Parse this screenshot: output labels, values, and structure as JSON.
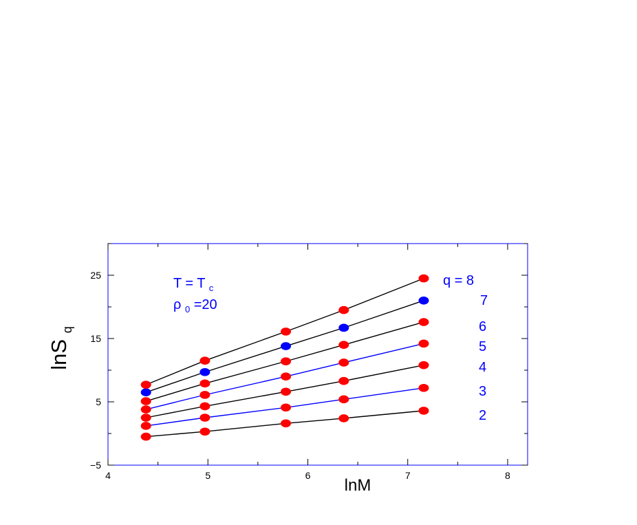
{
  "chart_data": {
    "type": "scatter",
    "xlabel": "lnM",
    "ylabel": {
      "main": "lnS",
      "subscript": "q"
    },
    "xlim": [
      4,
      8.2
    ],
    "ylim": [
      -5,
      30
    ],
    "x_ticks": [
      4,
      5,
      6,
      7,
      8
    ],
    "x_tick_labels": [
      "4",
      "5",
      "6",
      "7",
      "8"
    ],
    "y_ticks": [
      -5,
      5,
      15,
      25
    ],
    "y_tick_labels": [
      "−5",
      "5",
      "15",
      "25"
    ],
    "grid": false,
    "legend": "none",
    "annotations": {
      "temperature": {
        "main": "T = T",
        "subscript": "c"
      },
      "density": {
        "symbol": "ρ",
        "subscript": "0",
        "text": " =20"
      }
    },
    "x": [
      4.38,
      4.97,
      5.78,
      6.36,
      7.16
    ],
    "series": [
      {
        "name": "2",
        "label": "2",
        "values": [
          -0.5,
          0.3,
          1.6,
          2.4,
          3.6
        ],
        "line_color": "#000000",
        "marker_colors": [
          "#ff0000",
          "#ff0000",
          "#ff0000",
          "#ff0000",
          "#ff0000"
        ]
      },
      {
        "name": "3",
        "label": "3",
        "values": [
          1.2,
          2.5,
          4.1,
          5.4,
          7.2
        ],
        "line_color": "#0000ff",
        "marker_colors": [
          "#ff0000",
          "#ff0000",
          "#ff0000",
          "#ff0000",
          "#ff0000"
        ]
      },
      {
        "name": "4",
        "label": "4",
        "values": [
          2.5,
          4.3,
          6.6,
          8.3,
          10.8
        ],
        "line_color": "#000000",
        "marker_colors": [
          "#ff0000",
          "#ff0000",
          "#ff0000",
          "#ff0000",
          "#ff0000"
        ]
      },
      {
        "name": "5",
        "label": "5",
        "values": [
          3.8,
          6.1,
          9.0,
          11.2,
          14.2
        ],
        "line_color": "#0000ff",
        "marker_colors": [
          "#ff0000",
          "#ff0000",
          "#ff0000",
          "#ff0000",
          "#ff0000"
        ]
      },
      {
        "name": "6",
        "label": "6",
        "values": [
          5.1,
          7.9,
          11.4,
          14.0,
          17.6
        ],
        "line_color": "#000000",
        "marker_colors": [
          "#ff0000",
          "#ff0000",
          "#ff0000",
          "#ff0000",
          "#ff0000"
        ]
      },
      {
        "name": "7",
        "label": "7",
        "values": [
          6.5,
          9.7,
          13.8,
          16.7,
          21.0
        ],
        "line_color": "#000000",
        "marker_colors": [
          "#0000ff",
          "#0000ff",
          "#0000ff",
          "#0000ff",
          "#0000ff"
        ]
      },
      {
        "name": "8",
        "label": "q = 8",
        "values": [
          7.7,
          11.5,
          16.1,
          19.5,
          24.5
        ],
        "line_color": "#000000",
        "marker_colors": [
          "#ff0000",
          "#ff0000",
          "#ff0000",
          "#ff0000",
          "#ff0000"
        ]
      }
    ],
    "colors": {
      "frame": "#0000ff",
      "text": "#000000",
      "annotation": "#0000ff",
      "red_marker": "#ff0000",
      "blue_marker": "#0000ff"
    }
  }
}
